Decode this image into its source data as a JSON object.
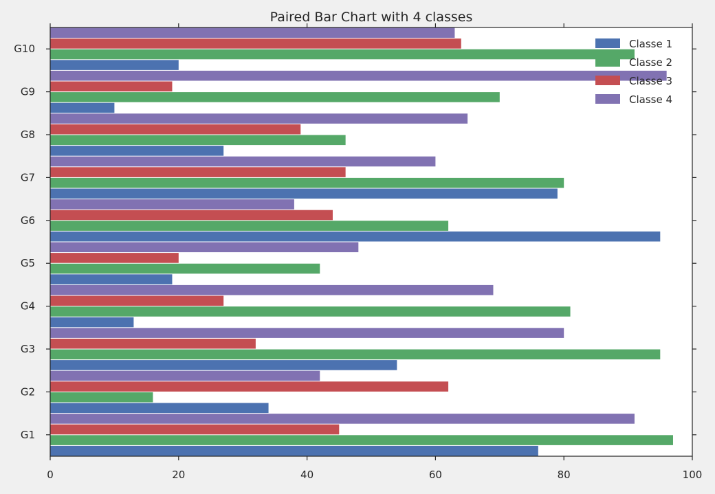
{
  "chart_data": {
    "type": "bar",
    "orientation": "horizontal",
    "title": "Paired Bar Chart with 4 classes",
    "xlabel": "",
    "ylabel": "",
    "xlim": [
      0,
      100
    ],
    "xticks": [
      0,
      20,
      40,
      60,
      80,
      100
    ],
    "categories": [
      "G1",
      "G2",
      "G3",
      "G4",
      "G5",
      "G6",
      "G7",
      "G8",
      "G9",
      "G10"
    ],
    "series": [
      {
        "name": "Classe 1",
        "color": "#4c72b0",
        "values": [
          76,
          34,
          54,
          13,
          19,
          95,
          79,
          27,
          10,
          20
        ]
      },
      {
        "name": "Classe 2",
        "color": "#55a868",
        "values": [
          97,
          16,
          95,
          81,
          42,
          62,
          80,
          46,
          70,
          91
        ]
      },
      {
        "name": "Classe 3",
        "color": "#c44e52",
        "values": [
          45,
          62,
          32,
          27,
          20,
          44,
          46,
          39,
          19,
          64
        ]
      },
      {
        "name": "Classe 4",
        "color": "#8172b2",
        "values": [
          91,
          42,
          80,
          69,
          48,
          38,
          60,
          65,
          96,
          63
        ]
      }
    ],
    "legend_position": "top-right",
    "grid": false
  }
}
